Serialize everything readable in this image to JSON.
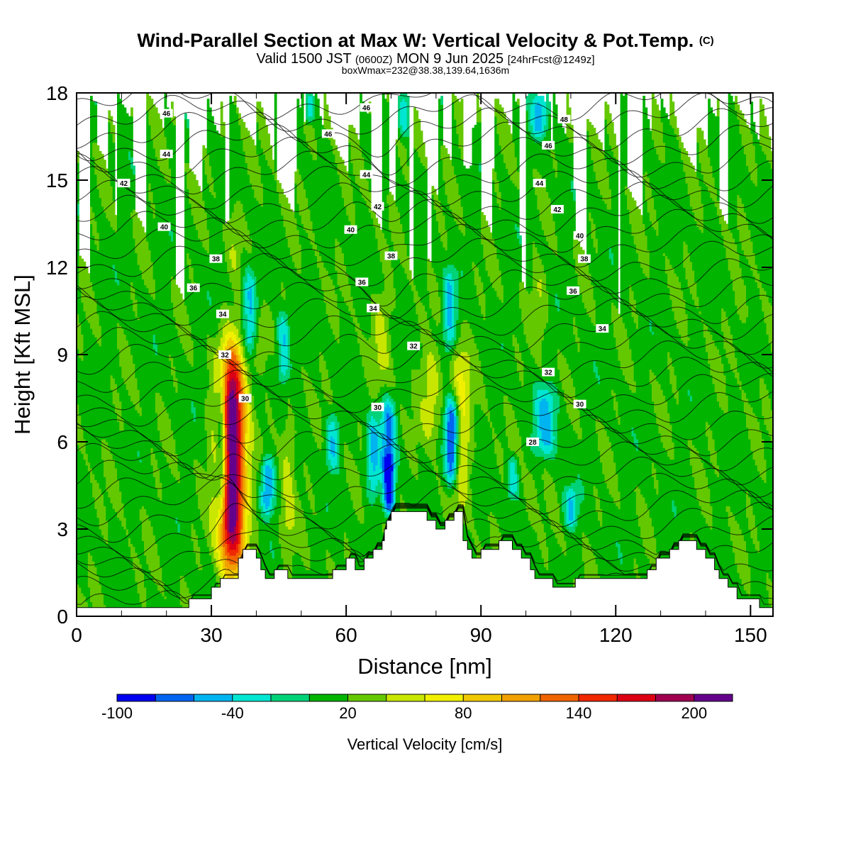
{
  "title": {
    "main": "Wind-Parallel Section at Max W: Vertical Velocity & Pot.Temp.",
    "copyright": "(C)",
    "valid_prefix": "Valid 1500 JST",
    "valid_utc": "(0600Z)",
    "valid_day": "MON 9 Jun 2025",
    "forecast": "[24hrFcst@1249z]",
    "boxmax": "boxWmax=232@38.38,139.64,1636m"
  },
  "chart_data": {
    "type": "heatmap",
    "xlabel": "Distance [nm]",
    "ylabel": "Height [Kft MSL]",
    "xlim": [
      0,
      155
    ],
    "ylim": [
      0,
      18
    ],
    "xticks": [
      0,
      30,
      60,
      90,
      120,
      150
    ],
    "yticks": [
      0,
      3,
      6,
      9,
      12,
      15,
      18
    ],
    "colorbar": {
      "label": "Vertical Velocity [cm/s]",
      "tick_labels": [
        "-100",
        "-40",
        "20",
        "80",
        "140",
        "200"
      ],
      "tick_values": [
        -100,
        -40,
        20,
        80,
        140,
        200
      ],
      "range": [
        -100,
        220
      ],
      "colors": [
        "#0000f0",
        "#0064f0",
        "#00b4f0",
        "#00e6d2",
        "#00d278",
        "#00b400",
        "#64c800",
        "#c8e600",
        "#f0f000",
        "#f0c800",
        "#f0a000",
        "#f06400",
        "#f02800",
        "#dc0014",
        "#a00050",
        "#64008c"
      ]
    },
    "terrain_kft": [
      [
        0,
        0.3
      ],
      [
        25,
        0.3
      ],
      [
        25,
        0.6
      ],
      [
        30,
        0.6
      ],
      [
        30,
        1.0
      ],
      [
        32,
        1.0
      ],
      [
        32,
        1.3
      ],
      [
        36,
        1.3
      ],
      [
        36,
        2.0
      ],
      [
        37,
        2.0
      ],
      [
        37,
        2.3
      ],
      [
        40,
        2.3
      ],
      [
        40,
        2.0
      ],
      [
        41,
        2.0
      ],
      [
        41,
        1.6
      ],
      [
        42,
        1.6
      ],
      [
        42,
        1.3
      ],
      [
        44,
        1.3
      ],
      [
        44,
        1.6
      ],
      [
        47,
        1.6
      ],
      [
        47,
        1.3
      ],
      [
        57,
        1.3
      ],
      [
        57,
        1.6
      ],
      [
        60,
        1.6
      ],
      [
        60,
        2.0
      ],
      [
        62,
        2.0
      ],
      [
        62,
        1.6
      ],
      [
        64,
        1.6
      ],
      [
        64,
        2.0
      ],
      [
        66,
        2.0
      ],
      [
        66,
        2.3
      ],
      [
        68,
        2.3
      ],
      [
        68,
        2.6
      ],
      [
        68.5,
        2.6
      ],
      [
        68.5,
        3.0
      ],
      [
        69,
        3.0
      ],
      [
        69,
        3.3
      ],
      [
        70,
        3.3
      ],
      [
        70,
        3.6
      ],
      [
        78,
        3.6
      ],
      [
        78,
        3.3
      ],
      [
        80,
        3.3
      ],
      [
        80,
        3.0
      ],
      [
        82,
        3.0
      ],
      [
        82,
        3.3
      ],
      [
        84,
        3.3
      ],
      [
        84,
        3.6
      ],
      [
        86,
        3.6
      ],
      [
        86,
        2.6
      ],
      [
        87,
        2.6
      ],
      [
        87,
        2.3
      ],
      [
        88,
        2.3
      ],
      [
        88,
        2.0
      ],
      [
        90,
        2.0
      ],
      [
        90,
        2.3
      ],
      [
        94,
        2.3
      ],
      [
        94,
        2.6
      ],
      [
        97,
        2.6
      ],
      [
        97,
        2.3
      ],
      [
        99,
        2.3
      ],
      [
        99,
        2.0
      ],
      [
        101,
        2.0
      ],
      [
        101,
        1.6
      ],
      [
        102,
        1.6
      ],
      [
        102,
        1.3
      ],
      [
        106,
        1.3
      ],
      [
        106,
        1.0
      ],
      [
        111,
        1.0
      ],
      [
        111,
        1.3
      ],
      [
        127,
        1.3
      ],
      [
        127,
        1.6
      ],
      [
        129,
        1.6
      ],
      [
        129,
        2.0
      ],
      [
        132,
        2.0
      ],
      [
        132,
        2.3
      ],
      [
        134,
        2.3
      ],
      [
        134,
        2.6
      ],
      [
        138,
        2.6
      ],
      [
        138,
        2.3
      ],
      [
        140,
        2.3
      ],
      [
        140,
        2.0
      ],
      [
        142,
        2.0
      ],
      [
        142,
        1.6
      ],
      [
        143,
        1.6
      ],
      [
        143,
        1.3
      ],
      [
        145,
        1.3
      ],
      [
        145,
        1.0
      ],
      [
        147,
        1.0
      ],
      [
        147,
        0.6
      ],
      [
        152,
        0.6
      ],
      [
        152,
        0.3
      ],
      [
        155,
        0.3
      ]
    ],
    "updrafts": [
      {
        "x": 34.5,
        "ybot": 1.5,
        "ytop": 9.3,
        "w": 3.0,
        "peak": 232
      },
      {
        "x": 85.5,
        "ybot": 3.8,
        "ytop": 9.5,
        "w": 2.2,
        "peak": 62
      },
      {
        "x": 79.0,
        "ybot": 6.0,
        "ytop": 9.2,
        "w": 2.4,
        "peak": 52
      },
      {
        "x": 47.0,
        "ybot": 2.0,
        "ytop": 7.0,
        "w": 1.6,
        "peak": 48
      },
      {
        "x": 68.0,
        "ybot": 8.0,
        "ytop": 11.2,
        "w": 2.0,
        "peak": 42
      },
      {
        "x": 103.0,
        "ybot": 9.5,
        "ytop": 12.0,
        "w": 1.6,
        "peak": 40
      },
      {
        "x": 41.0,
        "ybot": 8.5,
        "ytop": 10.5,
        "w": 1.5,
        "peak": 38
      },
      {
        "x": 87.0,
        "ybot": 15.5,
        "ytop": 17.8,
        "w": 1.4,
        "peak": 40
      },
      {
        "x": 35.0,
        "ybot": 11.8,
        "ytop": 14.3,
        "w": 1.4,
        "peak": 35
      },
      {
        "x": 101.0,
        "ybot": 3.0,
        "ytop": 5.0,
        "w": 1.4,
        "peak": 32
      },
      {
        "x": 148.0,
        "ybot": 10.0,
        "ytop": 11.5,
        "w": 1.5,
        "peak": 30
      }
    ],
    "downdrafts": [
      {
        "x": 32.3,
        "ybot": 3.5,
        "ytop": 8.5,
        "w": 1.3,
        "peak": -90
      },
      {
        "x": 83.5,
        "ybot": 4.5,
        "ytop": 7.5,
        "w": 1.5,
        "peak": -100
      },
      {
        "x": 69.5,
        "ybot": 3.5,
        "ytop": 5.5,
        "w": 1.3,
        "peak": -95
      },
      {
        "x": 69.3,
        "ybot": 5.0,
        "ytop": 7.5,
        "w": 1.6,
        "peak": -60
      },
      {
        "x": 42.5,
        "ybot": 3.5,
        "ytop": 5.5,
        "w": 1.5,
        "peak": -65
      },
      {
        "x": 38.5,
        "ybot": 9.0,
        "ytop": 12.0,
        "w": 1.5,
        "peak": -45
      },
      {
        "x": 46.0,
        "ybot": 8.0,
        "ytop": 10.5,
        "w": 1.4,
        "peak": -45
      },
      {
        "x": 66.0,
        "ybot": 4.0,
        "ytop": 7.0,
        "w": 1.4,
        "peak": -45
      },
      {
        "x": 57.0,
        "ybot": 5.0,
        "ytop": 7.0,
        "w": 1.4,
        "peak": -38
      },
      {
        "x": 83.0,
        "ybot": 9.0,
        "ytop": 12.0,
        "w": 1.4,
        "peak": -45
      },
      {
        "x": 104.5,
        "ybot": 5.5,
        "ytop": 8.0,
        "w": 2.5,
        "peak": -45
      },
      {
        "x": 103.0,
        "ybot": 16.5,
        "ytop": 18.0,
        "w": 1.8,
        "peak": -45
      },
      {
        "x": 73.0,
        "ybot": 16.5,
        "ytop": 18.0,
        "w": 1.4,
        "peak": -40
      },
      {
        "x": 52.0,
        "ybot": 17.0,
        "ytop": 18.0,
        "w": 1.2,
        "peak": -40
      },
      {
        "x": 110.0,
        "ybot": 3.0,
        "ytop": 4.5,
        "w": 1.5,
        "peak": -40
      },
      {
        "x": 97.0,
        "ybot": 4.0,
        "ytop": 5.5,
        "w": 1.2,
        "peak": -38
      }
    ],
    "theta_contours": [
      28,
      30,
      32,
      34,
      36,
      38,
      40,
      42,
      44,
      46,
      48
    ],
    "theta_labels": [
      {
        "text": "46",
        "x": 20,
        "y": 17.3
      },
      {
        "text": "44",
        "x": 20,
        "y": 15.9
      },
      {
        "text": "42",
        "x": 10.5,
        "y": 14.9
      },
      {
        "text": "40",
        "x": 19.5,
        "y": 13.4
      },
      {
        "text": "38",
        "x": 31,
        "y": 12.3
      },
      {
        "text": "36",
        "x": 26,
        "y": 11.3
      },
      {
        "text": "34",
        "x": 32.5,
        "y": 10.4
      },
      {
        "text": "32",
        "x": 33,
        "y": 9.0
      },
      {
        "text": "30",
        "x": 37.5,
        "y": 7.5
      },
      {
        "text": "46",
        "x": 64.5,
        "y": 17.5
      },
      {
        "text": "46",
        "x": 56,
        "y": 16.6
      },
      {
        "text": "44",
        "x": 64.5,
        "y": 15.2
      },
      {
        "text": "42",
        "x": 67,
        "y": 14.1
      },
      {
        "text": "40",
        "x": 61,
        "y": 13.3
      },
      {
        "text": "38",
        "x": 70,
        "y": 12.4
      },
      {
        "text": "36",
        "x": 63.5,
        "y": 11.5
      },
      {
        "text": "34",
        "x": 66,
        "y": 10.6
      },
      {
        "text": "32",
        "x": 75,
        "y": 9.3
      },
      {
        "text": "30",
        "x": 67,
        "y": 7.2
      },
      {
        "text": "48",
        "x": 108.5,
        "y": 17.1
      },
      {
        "text": "46",
        "x": 105,
        "y": 16.2
      },
      {
        "text": "44",
        "x": 103,
        "y": 14.9
      },
      {
        "text": "42",
        "x": 107,
        "y": 14.0
      },
      {
        "text": "40",
        "x": 112,
        "y": 13.1
      },
      {
        "text": "38",
        "x": 113,
        "y": 12.3
      },
      {
        "text": "36",
        "x": 110.5,
        "y": 11.2
      },
      {
        "text": "34",
        "x": 117,
        "y": 9.9
      },
      {
        "text": "32",
        "x": 105,
        "y": 8.4
      },
      {
        "text": "30",
        "x": 112,
        "y": 7.3
      },
      {
        "text": "28",
        "x": 101.5,
        "y": 6.0
      }
    ]
  }
}
